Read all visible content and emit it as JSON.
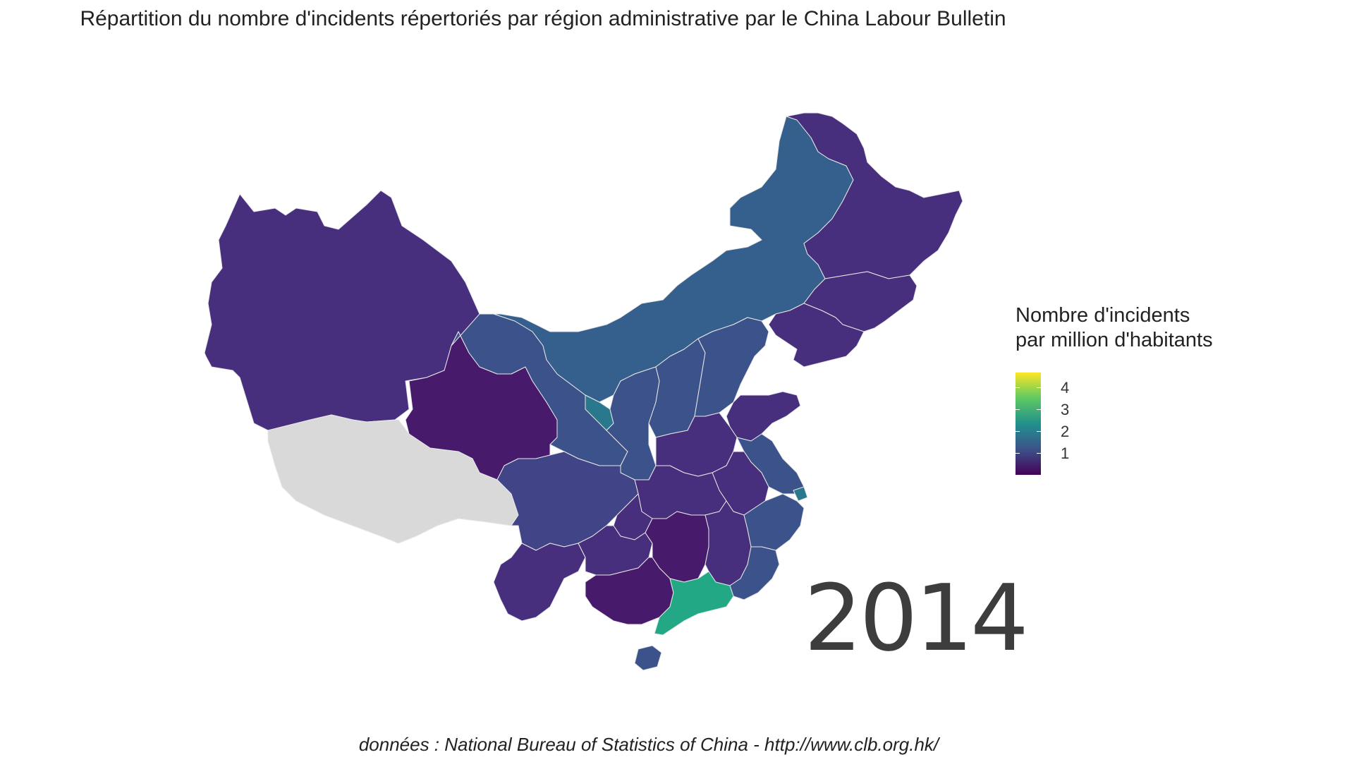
{
  "title": "Répartition du nombre d'incidents répertoriés par région administrative par le China Labour Bulletin",
  "year": "2014",
  "caption": "données : National Bureau of Statistics of China - http://www.clb.org.hk/",
  "legend": {
    "title_line1": "Nombre d'incidents",
    "title_line2": "par million d'habitants",
    "ticks": [
      "4",
      "3",
      "2",
      "1"
    ],
    "scale": "viridis",
    "range": [
      0.3,
      4.4
    ]
  },
  "colors": {
    "no_data": "#d9d9d9",
    "v_low": "#481a6c",
    "low": "#472f7d",
    "mid_low": "#414487",
    "mid": "#3b528b",
    "mid_high": "#355f8d",
    "teal": "#2a788e",
    "green": "#22a884"
  },
  "chart_data": {
    "type": "choropleth",
    "value_label": "Nombre d'incidents par million d'habitants",
    "regions": [
      {
        "id": "xinjiang",
        "value": 0.9
      },
      {
        "id": "tibet",
        "value": null
      },
      {
        "id": "qinghai",
        "value": 0.5
      },
      {
        "id": "gansu",
        "value": 1.2
      },
      {
        "id": "inner-mongolia",
        "value": 1.5
      },
      {
        "id": "heilongjiang",
        "value": 0.9
      },
      {
        "id": "jilin",
        "value": 0.9
      },
      {
        "id": "liaoning",
        "value": 0.9
      },
      {
        "id": "ningxia",
        "value": 1.8
      },
      {
        "id": "shaanxi",
        "value": 1.2
      },
      {
        "id": "shanxi",
        "value": 1.3
      },
      {
        "id": "hebei",
        "value": 1.2
      },
      {
        "id": "shandong",
        "value": 1.1
      },
      {
        "id": "henan",
        "value": 0.8
      },
      {
        "id": "jiangsu",
        "value": 1.5
      },
      {
        "id": "shanghai",
        "value": 2.0
      },
      {
        "id": "sichuan",
        "value": 1.1
      },
      {
        "id": "chongqing",
        "value": 0.9
      },
      {
        "id": "hubei",
        "value": 0.8
      },
      {
        "id": "anhui",
        "value": 0.9
      },
      {
        "id": "zhejiang",
        "value": 1.2
      },
      {
        "id": "yunnan",
        "value": 0.8
      },
      {
        "id": "guizhou",
        "value": 0.7
      },
      {
        "id": "hunan",
        "value": 0.7
      },
      {
        "id": "jiangxi",
        "value": 0.8
      },
      {
        "id": "fujian",
        "value": 1.3
      },
      {
        "id": "guangxi",
        "value": 0.6
      },
      {
        "id": "guangdong",
        "value": 2.4
      },
      {
        "id": "hainan",
        "value": 1.2
      }
    ]
  }
}
